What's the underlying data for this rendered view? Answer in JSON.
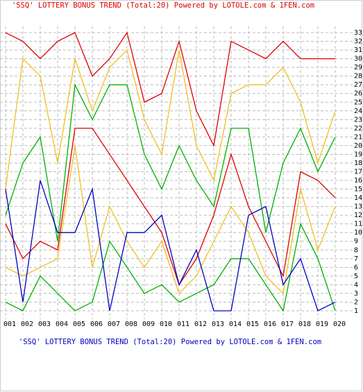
{
  "chart_data": {
    "type": "line",
    "title": "'SSQ' LOTTERY BONUS TREND (Total:20)  Powered by LOTOLE.com & 1FEN.com",
    "categories": [
      "001",
      "002",
      "003",
      "004",
      "005",
      "006",
      "007",
      "008",
      "009",
      "010",
      "011",
      "012",
      "013",
      "014",
      "015",
      "016",
      "017",
      "018",
      "019",
      "020"
    ],
    "series": [
      {
        "color": "#dd0000",
        "values": [
          33,
          32,
          30,
          32,
          33,
          28,
          30,
          33,
          25,
          26,
          32,
          24,
          20,
          32,
          31,
          30,
          32,
          30,
          30,
          30
        ]
      },
      {
        "color": "#f0c020",
        "values": [
          15,
          30,
          28,
          18,
          30,
          24,
          29,
          31,
          23,
          19,
          31,
          20,
          16,
          26,
          27,
          27,
          29,
          25,
          18,
          24
        ]
      },
      {
        "color": "#00b000",
        "values": [
          12,
          18,
          21,
          9,
          27,
          23,
          27,
          27,
          19,
          15,
          20,
          16,
          13,
          22,
          22,
          10,
          18,
          22,
          17,
          21
        ]
      },
      {
        "color": "#dd0000",
        "values": [
          11,
          7,
          9,
          8,
          22,
          22,
          19,
          16,
          13,
          10,
          4,
          7,
          12,
          19,
          13,
          9,
          5,
          17,
          16,
          14
        ]
      },
      {
        "color": "#f0c020",
        "values": [
          6,
          5,
          6,
          7,
          20,
          6,
          13,
          9,
          6,
          9,
          3,
          5,
          9,
          13,
          10,
          5,
          3,
          15,
          8,
          13
        ]
      },
      {
        "color": "#00b000",
        "values": [
          2,
          1,
          5,
          3,
          1,
          2,
          9,
          6,
          3,
          4,
          2,
          3,
          4,
          7,
          7,
          4,
          1,
          11,
          7,
          1
        ]
      },
      {
        "color": "#0000c0",
        "values": [
          15,
          2,
          16,
          10,
          10,
          15,
          1,
          10,
          10,
          12,
          4,
          8,
          1,
          1,
          12,
          13,
          4,
          7,
          1,
          2
        ]
      }
    ],
    "ylim": [
      0,
      34
    ],
    "yticks": [
      1,
      2,
      3,
      4,
      5,
      6,
      7,
      8,
      9,
      10,
      11,
      12,
      13,
      14,
      15,
      16,
      17,
      18,
      19,
      20,
      21,
      22,
      23,
      24,
      25,
      26,
      27,
      28,
      29,
      30,
      31,
      32,
      33
    ],
    "grid": true
  }
}
